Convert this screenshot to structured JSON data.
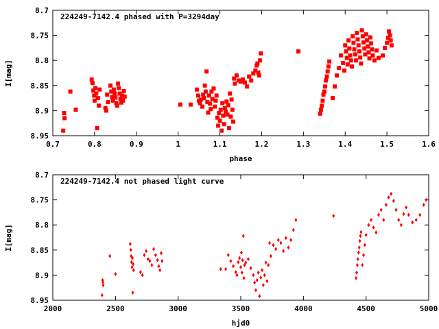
{
  "chart_data": [
    {
      "type": "scatter",
      "title": "224249-7142.4 phased with P=3294day",
      "xlabel": "phase",
      "ylabel": "I[mag]",
      "xlim": [
        0.7,
        1.6
      ],
      "ylim": [
        8.95,
        8.7
      ],
      "y_inverted": true,
      "grid": false,
      "xticks": [
        "0.7",
        "0.8",
        "0.9",
        "1",
        "1.1",
        "1.2",
        "1.3",
        "1.4",
        "1.5",
        "1.6"
      ],
      "yticks": [
        "8.7",
        "8.75",
        "8.8",
        "8.85",
        "8.9",
        "8.95"
      ],
      "marker_color": "#ff0000",
      "marker": "filled-square",
      "series": [
        {
          "x": [
            0.725,
            0.727,
            0.728,
            0.742,
            0.755,
            0.793,
            0.795,
            0.797,
            0.799,
            0.8,
            0.802,
            0.804,
            0.806,
            0.808,
            0.81,
            0.812,
            0.826,
            0.828,
            0.83,
            0.832,
            0.838,
            0.84,
            0.842,
            0.844,
            0.846,
            0.848,
            0.85,
            0.852,
            0.854,
            0.856,
            0.858,
            0.86,
            0.862,
            0.864,
            0.866,
            0.868,
            0.87,
            0.872,
            1.005,
            1.03,
            1.045,
            1.048,
            1.05,
            1.052,
            1.055,
            1.058,
            1.06,
            1.062,
            1.064,
            1.066,
            1.068,
            1.07,
            1.072,
            1.074,
            1.076,
            1.078,
            1.08,
            1.082,
            1.085,
            1.088,
            1.09,
            1.092,
            1.094,
            1.096,
            1.098,
            1.1,
            1.102,
            1.104,
            1.106,
            1.108,
            1.11,
            1.112,
            1.114,
            1.116,
            1.118,
            1.12,
            1.122,
            1.124,
            1.126,
            1.128,
            1.13,
            1.132,
            1.134,
            1.136,
            1.14,
            1.145,
            1.15,
            1.155,
            1.16,
            1.165,
            1.17,
            1.175,
            1.18,
            1.185,
            1.188,
            1.19,
            1.192,
            1.194,
            1.196,
            1.198,
            1.288,
            1.34,
            1.342,
            1.344,
            1.346,
            1.348,
            1.35,
            1.352,
            1.354,
            1.356,
            1.358,
            1.36,
            1.362,
            1.37,
            1.375,
            1.38,
            1.385,
            1.39,
            1.395,
            1.398,
            1.4,
            1.402,
            1.404,
            1.406,
            1.408,
            1.41,
            1.412,
            1.414,
            1.416,
            1.418,
            1.42,
            1.422,
            1.424,
            1.426,
            1.428,
            1.43,
            1.432,
            1.434,
            1.436,
            1.438,
            1.44,
            1.442,
            1.444,
            1.446,
            1.448,
            1.45,
            1.452,
            1.454,
            1.456,
            1.458,
            1.46,
            1.462,
            1.464,
            1.466,
            1.47,
            1.475,
            1.48,
            1.49,
            1.495,
            1.5,
            1.503,
            1.505,
            1.507,
            1.509,
            1.511
          ],
          "y": [
            8.94,
            8.905,
            8.915,
            8.862,
            8.898,
            8.838,
            8.845,
            8.86,
            8.87,
            8.88,
            8.855,
            8.866,
            8.935,
            8.875,
            8.89,
            8.858,
            8.895,
            8.9,
            8.868,
            8.883,
            8.85,
            8.862,
            8.873,
            8.88,
            8.858,
            8.866,
            8.874,
            8.885,
            8.89,
            8.846,
            8.855,
            8.866,
            8.876,
            8.884,
            8.87,
            8.88,
            8.861,
            8.872,
            8.888,
            8.888,
            8.858,
            8.87,
            8.88,
            8.885,
            8.878,
            8.892,
            8.868,
            8.875,
            8.85,
            8.862,
            8.822,
            8.883,
            8.904,
            8.87,
            8.886,
            8.897,
            8.862,
            8.877,
            8.856,
            8.892,
            8.88,
            8.87,
            8.914,
            8.93,
            8.905,
            8.92,
            8.898,
            8.94,
            8.885,
            8.91,
            8.927,
            8.895,
            8.902,
            8.882,
            8.908,
            8.889,
            8.935,
            8.866,
            8.912,
            8.878,
            8.898,
            8.922,
            8.836,
            8.846,
            8.83,
            8.84,
            8.842,
            8.838,
            8.844,
            8.852,
            8.832,
            8.84,
            8.826,
            8.82,
            8.81,
            8.806,
            8.824,
            8.83,
            8.8,
            8.786,
            8.782,
            8.906,
            8.898,
            8.89,
            8.88,
            8.868,
            8.862,
            8.852,
            8.84,
            8.832,
            8.822,
            8.812,
            8.802,
            8.875,
            8.852,
            8.83,
            8.815,
            8.79,
            8.805,
            8.82,
            8.77,
            8.782,
            8.795,
            8.808,
            8.76,
            8.776,
            8.79,
            8.8,
            8.812,
            8.752,
            8.765,
            8.778,
            8.788,
            8.8,
            8.745,
            8.758,
            8.77,
            8.782,
            8.794,
            8.806,
            8.74,
            8.752,
            8.764,
            8.776,
            8.788,
            8.748,
            8.76,
            8.772,
            8.784,
            8.796,
            8.754,
            8.766,
            8.778,
            8.79,
            8.8,
            8.78,
            8.795,
            8.79,
            8.775,
            8.765,
            8.755,
            8.742,
            8.75,
            8.76,
            8.77
          ]
        }
      ]
    },
    {
      "type": "scatter",
      "title": "224249-7142.4 not phased light curve",
      "xlabel": "hjd0",
      "ylabel": "I[mag]",
      "xlim": [
        2000,
        5000
      ],
      "ylim": [
        8.95,
        8.7
      ],
      "y_inverted": true,
      "grid": false,
      "xticks": [
        "2000",
        "2500",
        "3000",
        "3500",
        "4000",
        "4500",
        "5000"
      ],
      "yticks": [
        "8.7",
        "8.75",
        "8.8",
        "8.85",
        "8.9",
        "8.95"
      ],
      "marker_color": "#ff0000",
      "marker": "diamond",
      "series": [
        {
          "x": [
            2393,
            2397,
            2400,
            2402,
            2455,
            2500,
            2618,
            2622,
            2625,
            2628,
            2632,
            2635,
            2638,
            2642,
            2645,
            2700,
            2715,
            2730,
            2745,
            2760,
            2775,
            2790,
            2805,
            2820,
            2835,
            2845,
            2855,
            2865,
            2872,
            3340,
            3380,
            3400,
            3420,
            3440,
            3460,
            3470,
            3480,
            3490,
            3500,
            3505,
            3510,
            3515,
            3520,
            3525,
            3530,
            3540,
            3560,
            3580,
            3600,
            3610,
            3620,
            3630,
            3640,
            3650,
            3660,
            3670,
            3680,
            3690,
            3700,
            3710,
            3720,
            3730,
            3740,
            3760,
            3780,
            3800,
            3820,
            3840,
            3860,
            3880,
            3900,
            3920,
            3940,
            4240,
            4420,
            4425,
            4430,
            4435,
            4440,
            4445,
            4450,
            4455,
            4460,
            4470,
            4480,
            4490,
            4500,
            4520,
            4540,
            4560,
            4580,
            4600,
            4620,
            4640,
            4660,
            4680,
            4700,
            4720,
            4740,
            4760,
            4780,
            4800,
            4820,
            4840,
            4870,
            4900,
            4930,
            4960,
            4980
          ],
          "y": [
            8.94,
            8.91,
            8.914,
            8.92,
            8.862,
            8.898,
            8.838,
            8.85,
            8.862,
            8.874,
            8.884,
            8.866,
            8.935,
            8.878,
            8.89,
            8.894,
            8.9,
            8.86,
            8.852,
            8.868,
            8.872,
            8.88,
            8.848,
            8.86,
            8.87,
            8.882,
            8.89,
            8.856,
            8.872,
            8.888,
            8.888,
            8.86,
            8.872,
            8.882,
            8.894,
            8.9,
            8.874,
            8.866,
            8.884,
            8.855,
            8.895,
            8.87,
            8.822,
            8.906,
            8.88,
            8.875,
            8.868,
            8.886,
            8.9,
            8.915,
            8.93,
            8.91,
            8.895,
            8.942,
            8.905,
            8.89,
            8.92,
            8.9,
            8.875,
            8.912,
            8.88,
            8.836,
            8.862,
            8.84,
            8.848,
            8.83,
            8.836,
            8.852,
            8.826,
            8.845,
            8.83,
            8.81,
            8.79,
            8.782,
            8.906,
            8.895,
            8.88,
            8.868,
            8.855,
            8.845,
            8.832,
            8.822,
            8.814,
            8.88,
            8.86,
            8.84,
            8.82,
            8.8,
            8.79,
            8.805,
            8.815,
            8.78,
            8.77,
            8.79,
            8.76,
            8.745,
            8.738,
            8.752,
            8.77,
            8.79,
            8.8,
            8.778,
            8.765,
            8.78,
            8.795,
            8.79,
            8.78,
            8.76,
            8.75
          ]
        }
      ]
    }
  ]
}
